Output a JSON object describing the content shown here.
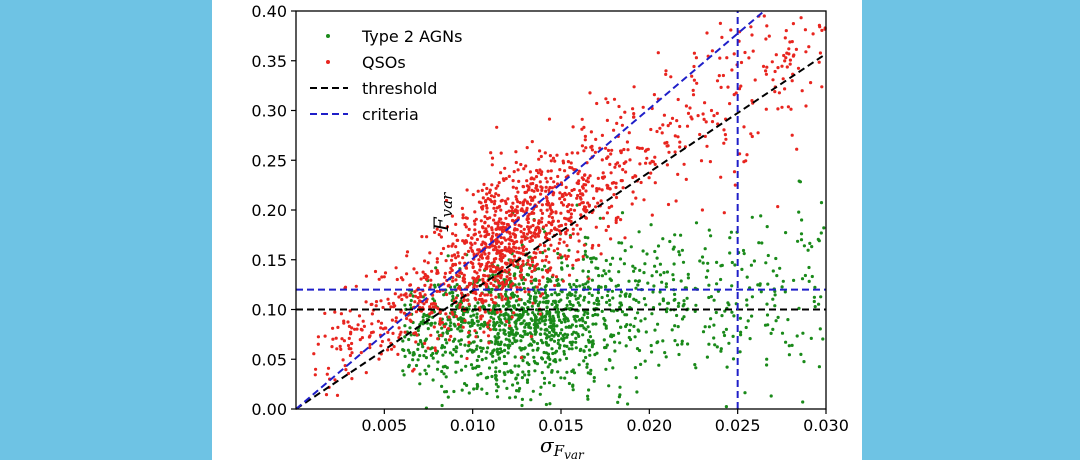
{
  "colors": {
    "background": "#6ec3e4",
    "panel": "#ffffff",
    "type2": "#1a8a1a",
    "qso": "#e8251f",
    "threshold": "#000000",
    "criteria": "#1f1fc8"
  },
  "chart_data": {
    "type": "scatter",
    "xlabel_main": "σ",
    "xlabel_sub": "F",
    "xlabel_subsub": "var",
    "ylabel_main": "F",
    "ylabel_sub": "var",
    "xlim": [
      0,
      0.03
    ],
    "ylim": [
      0,
      0.4
    ],
    "xticks": [
      "0.005",
      "0.010",
      "0.015",
      "0.020",
      "0.025",
      "0.030"
    ],
    "yticks": [
      "0.00",
      "0.05",
      "0.10",
      "0.15",
      "0.20",
      "0.25",
      "0.30",
      "0.35",
      "0.40"
    ],
    "grid": false,
    "legend_position": "top-left",
    "series": [
      {
        "name": "Type 2 AGNs",
        "color": "#1a8a1a",
        "kind": "points",
        "distribution": {
          "count": 1500,
          "x_range": [
            0.006,
            0.03
          ],
          "x_peak": 0.011,
          "y_model": "0.06 + 2.2*x",
          "y_spread": 0.045
        }
      },
      {
        "name": "QSOs",
        "color": "#e8251f",
        "kind": "points",
        "distribution": {
          "count": 1500,
          "x_range": [
            0.001,
            0.03
          ],
          "x_peak": 0.01,
          "y_model": "0.03 + 11.5*x",
          "y_spread": 0.045
        }
      },
      {
        "name": "threshold",
        "color": "#000000",
        "kind": "dashed-lines",
        "lines": [
          {
            "x": [
              0,
              0.03
            ],
            "y": [
              0,
              0.357
            ]
          },
          {
            "x": [
              0,
              0.03
            ],
            "y": [
              0.1,
              0.1
            ]
          }
        ]
      },
      {
        "name": "criteria",
        "color": "#1f1fc8",
        "kind": "dashed-lines",
        "lines": [
          {
            "x": [
              0,
              0.0265
            ],
            "y": [
              0,
              0.4
            ]
          },
          {
            "x": [
              0,
              0.03
            ],
            "y": [
              0.12,
              0.12
            ]
          },
          {
            "x": [
              0.025,
              0.025
            ],
            "y": [
              0,
              0.4
            ]
          }
        ]
      }
    ]
  }
}
